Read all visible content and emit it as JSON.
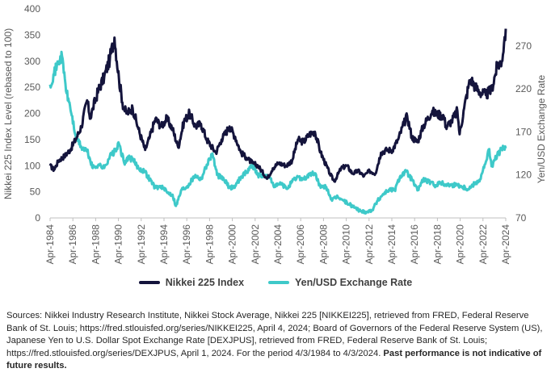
{
  "chart_data": {
    "type": "line",
    "y_label_left": "Nikkei 225 Index Level (rebased to 100)",
    "y_label_right": "Yen/USD Exchange Rate",
    "left_ticks": [
      "0",
      "50",
      "100",
      "150",
      "200",
      "250",
      "300",
      "350",
      "400"
    ],
    "left_ylim": [
      0,
      400
    ],
    "right_ticks": [
      "70",
      "120",
      "170",
      "220",
      "270"
    ],
    "right_ylim": [
      70,
      313
    ],
    "x_ticks": [
      "Apr-1984",
      "Apr-1986",
      "Apr-1988",
      "Apr-1990",
      "Apr-1992",
      "Apr-1994",
      "Apr-1996",
      "Apr-1998",
      "Apr-2000",
      "Apr-2002",
      "Apr-2004",
      "Apr-2006",
      "Apr-2008",
      "Apr-2010",
      "Apr-2012",
      "Apr-2014",
      "Apr-2016",
      "Apr-2018",
      "Apr-2020",
      "Apr-2022",
      "Apr-2024"
    ],
    "xlim": [
      1984.25,
      2024.25
    ],
    "grid": false,
    "legend_position": "bottom",
    "colors": {
      "nikkei": "#14143c",
      "yen": "#3ec9c9"
    },
    "series": [
      {
        "name": "Nikkei 225 Index",
        "axis": "left",
        "points": [
          [
            1984.25,
            100
          ],
          [
            1984.6,
            92
          ],
          [
            1985.0,
            110
          ],
          [
            1985.5,
            118
          ],
          [
            1986.0,
            130
          ],
          [
            1986.5,
            150
          ],
          [
            1987.0,
            175
          ],
          [
            1987.5,
            225
          ],
          [
            1987.8,
            190
          ],
          [
            1988.0,
            210
          ],
          [
            1988.5,
            245
          ],
          [
            1989.0,
            270
          ],
          [
            1989.5,
            305
          ],
          [
            1989.9,
            345
          ],
          [
            1990.3,
            265
          ],
          [
            1990.7,
            210
          ],
          [
            1991.0,
            200
          ],
          [
            1991.5,
            210
          ],
          [
            1992.0,
            170
          ],
          [
            1992.6,
            130
          ],
          [
            1993.0,
            155
          ],
          [
            1993.5,
            190
          ],
          [
            1994.0,
            175
          ],
          [
            1994.5,
            190
          ],
          [
            1995.0,
            170
          ],
          [
            1995.5,
            135
          ],
          [
            1996.0,
            185
          ],
          [
            1996.5,
            200
          ],
          [
            1997.0,
            175
          ],
          [
            1997.5,
            180
          ],
          [
            1998.0,
            150
          ],
          [
            1998.8,
            125
          ],
          [
            1999.3,
            150
          ],
          [
            2000.0,
            175
          ],
          [
            2000.5,
            155
          ],
          [
            2001.0,
            125
          ],
          [
            2001.5,
            115
          ],
          [
            2002.0,
            105
          ],
          [
            2002.5,
            100
          ],
          [
            2003.3,
            75
          ],
          [
            2003.8,
            95
          ],
          [
            2004.3,
            105
          ],
          [
            2005.0,
            100
          ],
          [
            2005.5,
            110
          ],
          [
            2006.0,
            150
          ],
          [
            2006.5,
            145
          ],
          [
            2007.0,
            160
          ],
          [
            2007.5,
            165
          ],
          [
            2008.0,
            125
          ],
          [
            2008.8,
            85
          ],
          [
            2009.2,
            70
          ],
          [
            2009.8,
            95
          ],
          [
            2010.3,
            100
          ],
          [
            2010.8,
            85
          ],
          [
            2011.3,
            90
          ],
          [
            2011.8,
            80
          ],
          [
            2012.3,
            90
          ],
          [
            2012.8,
            85
          ],
          [
            2013.3,
            125
          ],
          [
            2013.8,
            130
          ],
          [
            2014.3,
            130
          ],
          [
            2014.8,
            150
          ],
          [
            2015.3,
            180
          ],
          [
            2015.6,
            195
          ],
          [
            2016.0,
            155
          ],
          [
            2016.5,
            145
          ],
          [
            2017.0,
            175
          ],
          [
            2017.8,
            205
          ],
          [
            2018.0,
            200
          ],
          [
            2018.8,
            195
          ],
          [
            2019.0,
            175
          ],
          [
            2019.5,
            185
          ],
          [
            2020.0,
            205
          ],
          [
            2020.2,
            160
          ],
          [
            2020.6,
            210
          ],
          [
            2021.0,
            255
          ],
          [
            2021.2,
            265
          ],
          [
            2021.6,
            250
          ],
          [
            2022.0,
            240
          ],
          [
            2022.5,
            235
          ],
          [
            2023.0,
            245
          ],
          [
            2023.5,
            290
          ],
          [
            2023.9,
            300
          ],
          [
            2024.1,
            335
          ],
          [
            2024.25,
            362
          ]
        ]
      },
      {
        "name": "Yen/USD Exchange Rate",
        "axis": "right",
        "points": [
          [
            1984.25,
            225
          ],
          [
            1984.6,
            238
          ],
          [
            1985.0,
            252
          ],
          [
            1985.3,
            258
          ],
          [
            1985.7,
            215
          ],
          [
            1986.0,
            200
          ],
          [
            1986.5,
            165
          ],
          [
            1987.0,
            152
          ],
          [
            1987.5,
            148
          ],
          [
            1988.0,
            128
          ],
          [
            1988.5,
            132
          ],
          [
            1989.0,
            128
          ],
          [
            1989.5,
            142
          ],
          [
            1990.0,
            148
          ],
          [
            1990.3,
            156
          ],
          [
            1990.8,
            132
          ],
          [
            1991.0,
            140
          ],
          [
            1991.5,
            138
          ],
          [
            1992.0,
            128
          ],
          [
            1992.5,
            125
          ],
          [
            1993.0,
            115
          ],
          [
            1993.5,
            105
          ],
          [
            1994.0,
            107
          ],
          [
            1994.5,
            100
          ],
          [
            1995.0,
            97
          ],
          [
            1995.3,
            84
          ],
          [
            1995.8,
            103
          ],
          [
            1996.3,
            107
          ],
          [
            1997.0,
            120
          ],
          [
            1997.5,
            115
          ],
          [
            1998.0,
            132
          ],
          [
            1998.5,
            145
          ],
          [
            1998.9,
            120
          ],
          [
            1999.5,
            115
          ],
          [
            2000.0,
            105
          ],
          [
            2000.5,
            107
          ],
          [
            2001.0,
            118
          ],
          [
            2001.5,
            123
          ],
          [
            2002.0,
            132
          ],
          [
            2002.5,
            120
          ],
          [
            2003.0,
            119
          ],
          [
            2003.5,
            117
          ],
          [
            2004.0,
            106
          ],
          [
            2004.5,
            110
          ],
          [
            2005.0,
            104
          ],
          [
            2005.5,
            112
          ],
          [
            2006.0,
            118
          ],
          [
            2006.5,
            115
          ],
          [
            2007.0,
            120
          ],
          [
            2007.5,
            122
          ],
          [
            2008.0,
            105
          ],
          [
            2008.5,
            106
          ],
          [
            2009.0,
            90
          ],
          [
            2009.5,
            95
          ],
          [
            2010.0,
            90
          ],
          [
            2010.5,
            86
          ],
          [
            2011.0,
            82
          ],
          [
            2011.5,
            78
          ],
          [
            2012.0,
            77
          ],
          [
            2012.5,
            79
          ],
          [
            2013.0,
            90
          ],
          [
            2013.5,
            98
          ],
          [
            2014.0,
            103
          ],
          [
            2014.5,
            102
          ],
          [
            2015.0,
            119
          ],
          [
            2015.5,
            124
          ],
          [
            2016.0,
            115
          ],
          [
            2016.5,
            102
          ],
          [
            2017.0,
            115
          ],
          [
            2017.5,
            112
          ],
          [
            2018.0,
            108
          ],
          [
            2018.5,
            111
          ],
          [
            2019.0,
            109
          ],
          [
            2019.5,
            108
          ],
          [
            2020.0,
            109
          ],
          [
            2020.5,
            106
          ],
          [
            2021.0,
            104
          ],
          [
            2021.5,
            110
          ],
          [
            2022.0,
            115
          ],
          [
            2022.5,
            135
          ],
          [
            2022.8,
            150
          ],
          [
            2023.0,
            130
          ],
          [
            2023.5,
            143
          ],
          [
            2023.9,
            150
          ],
          [
            2024.25,
            151
          ]
        ]
      }
    ]
  },
  "legend": [
    {
      "label": "Nikkei 225 Index",
      "color": "#14143c"
    },
    {
      "label": "Yen/USD Exchange Rate",
      "color": "#3ec9c9"
    }
  ],
  "footnote": {
    "text": "Sources: Nikkei Industry Research Institute, Nikkei Stock Average, Nikkei 225 [NIKKEI225], retrieved from FRED, Federal Reserve Bank of St. Louis; https://fred.stlouisfed.org/series/NIKKEI225, April 4, 2024; Board of Governors of the Federal Reserve System (US), Japanese Yen to U.S. Dollar Spot Exchange Rate [DEXJPUS], retrieved from FRED, Federal Reserve Bank of St. Louis; https://fred.stlouisfed.org/series/DEXJPUS, April 1, 2024. For the period 4/3/1984 to 4/3/2024.",
    "bold": "Past performance is not indicative of future results."
  }
}
